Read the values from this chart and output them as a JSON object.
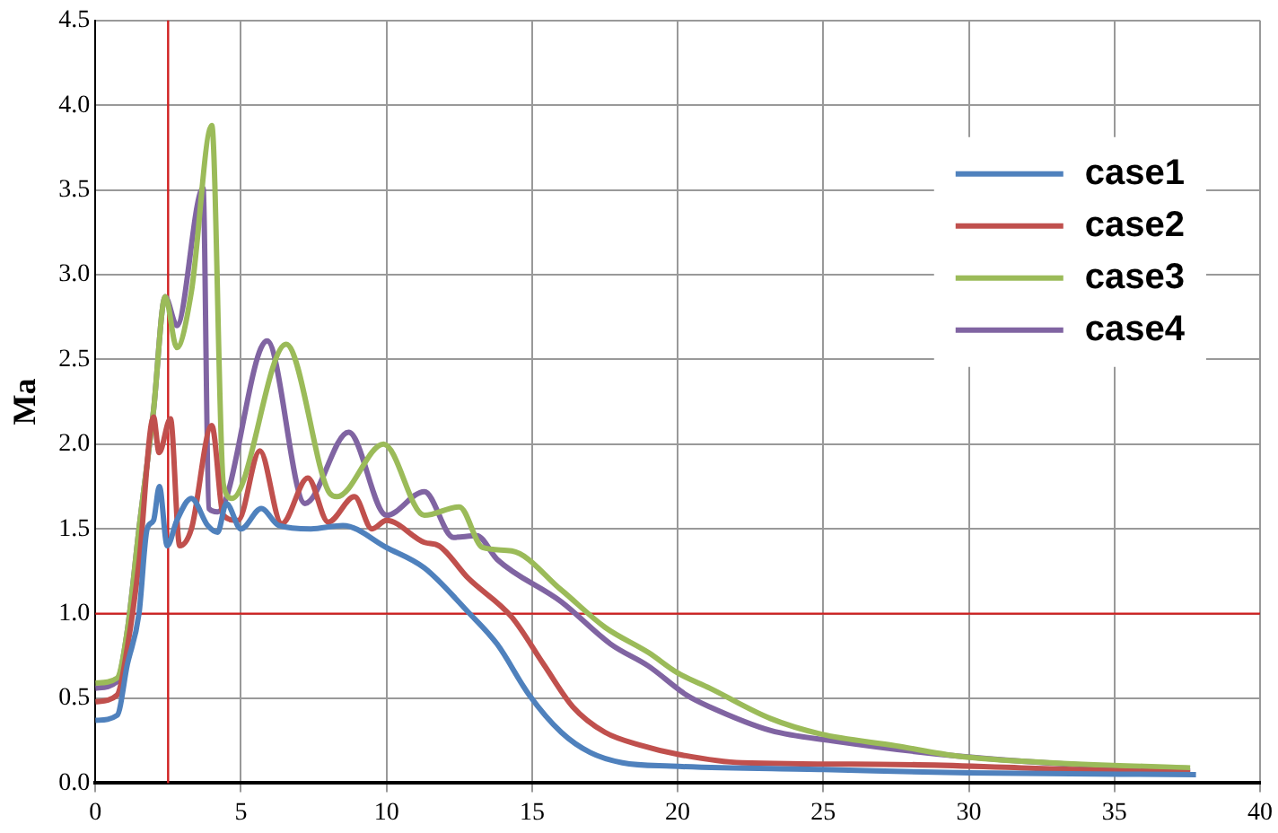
{
  "chart_data": {
    "type": "line",
    "ylabel": "Ma",
    "xlim": [
      0,
      40
    ],
    "xticks": [
      0,
      5,
      10,
      15,
      20,
      25,
      30,
      35,
      40
    ],
    "ylim": [
      0,
      4.5
    ],
    "yticks": [
      {
        "value": 0,
        "label": "0.0"
      },
      0.5,
      {
        "value": 1,
        "label": "1.0"
      },
      1.5,
      {
        "value": 2,
        "label": "2.0"
      },
      2.5,
      {
        "value": 3,
        "label": "3.0"
      },
      3.5,
      {
        "value": 4,
        "label": "4.0"
      },
      4.5
    ],
    "grid": true,
    "legend": "top right",
    "marker": "none",
    "line_style": "solid",
    "ref_lines": [
      {
        "axis": "x",
        "value": 2.5,
        "color": "#d02020"
      },
      {
        "axis": "y",
        "value": 1,
        "color": "#d02020"
      }
    ],
    "series": [
      {
        "name": "case1",
        "color": "#4f81bd",
        "x": [
          0,
          0.75,
          1.1,
          1.5,
          1.78,
          2.0,
          2.2,
          2.47,
          2.8,
          3.3,
          3.86,
          4.2,
          4.5,
          5.0,
          5.7,
          6.3,
          7.4,
          8.5,
          10,
          11.3,
          12.8,
          13.8,
          14.9,
          16,
          17,
          18.1,
          19.8,
          25,
          30,
          37.8
        ],
        "values": [
          0.37,
          0.4,
          0.7,
          1.0,
          1.5,
          1.55,
          1.75,
          1.4,
          1.55,
          1.68,
          1.52,
          1.48,
          1.65,
          1.5,
          1.62,
          1.52,
          1.5,
          1.52,
          1.39,
          1.27,
          1.01,
          0.82,
          0.52,
          0.3,
          0.18,
          0.12,
          0.1,
          0.08,
          0.06,
          0.05
        ]
      },
      {
        "name": "case2",
        "color": "#c0504d",
        "x": [
          0,
          0.75,
          1.1,
          1.5,
          2.0,
          2.19,
          2.58,
          2.9,
          3.3,
          4.0,
          4.4,
          4.9,
          5.65,
          6.4,
          7.3,
          8.0,
          8.9,
          9.5,
          10,
          11.3,
          11.8,
          12.8,
          14.3,
          15.4,
          16.4,
          17.5,
          18.8,
          20,
          22.2,
          27.5,
          31.8,
          37.6
        ],
        "values": [
          0.48,
          0.52,
          0.8,
          1.3,
          2.16,
          1.95,
          2.15,
          1.4,
          1.5,
          2.11,
          1.58,
          1.55,
          1.96,
          1.53,
          1.8,
          1.54,
          1.69,
          1.5,
          1.55,
          1.42,
          1.4,
          1.21,
          0.98,
          0.7,
          0.45,
          0.3,
          0.22,
          0.17,
          0.12,
          0.11,
          0.09,
          0.06
        ]
      },
      {
        "name": "case3",
        "color": "#9bbb59",
        "x": [
          0,
          0.75,
          1.1,
          1.5,
          2.0,
          2.4,
          2.8,
          3.3,
          4.0,
          4.4,
          4.7,
          6.55,
          8.05,
          8.3,
          9.9,
          11.3,
          12.5,
          13.3,
          14.3,
          16,
          17.5,
          19,
          20,
          21.1,
          23.2,
          24.9,
          27.5,
          29.6,
          32.8,
          37.6
        ],
        "values": [
          0.59,
          0.62,
          0.9,
          1.5,
          2.2,
          2.87,
          2.57,
          2.9,
          3.88,
          1.76,
          1.68,
          2.59,
          1.71,
          1.69,
          2.0,
          1.58,
          1.63,
          1.39,
          1.37,
          1.14,
          0.92,
          0.77,
          0.65,
          0.56,
          0.38,
          0.29,
          0.22,
          0.16,
          0.12,
          0.09
        ]
      },
      {
        "name": "case4",
        "color": "#8064a2",
        "x": [
          0,
          0.75,
          1.1,
          1.5,
          2.0,
          2.4,
          2.8,
          3.7,
          3.9,
          4.2,
          5.9,
          7.2,
          8.7,
          10,
          11.3,
          12.3,
          13.1,
          13.8,
          16,
          17.7,
          19,
          20.3,
          21.1,
          23.2,
          25.3,
          29.6,
          37.6
        ],
        "values": [
          0.56,
          0.6,
          0.9,
          1.5,
          2.2,
          2.87,
          2.7,
          3.51,
          1.62,
          1.6,
          2.61,
          1.65,
          2.07,
          1.58,
          1.72,
          1.45,
          1.46,
          1.32,
          1.07,
          0.82,
          0.69,
          0.52,
          0.45,
          0.31,
          0.25,
          0.16,
          0.07
        ]
      }
    ]
  }
}
